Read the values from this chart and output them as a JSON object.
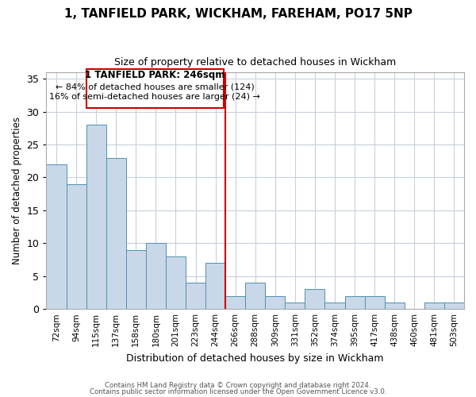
{
  "title": "1, TANFIELD PARK, WICKHAM, FAREHAM, PO17 5NP",
  "subtitle": "Size of property relative to detached houses in Wickham",
  "xlabel": "Distribution of detached houses by size in Wickham",
  "ylabel": "Number of detached properties",
  "bar_labels": [
    "72sqm",
    "94sqm",
    "115sqm",
    "137sqm",
    "158sqm",
    "180sqm",
    "201sqm",
    "223sqm",
    "244sqm",
    "266sqm",
    "288sqm",
    "309sqm",
    "331sqm",
    "352sqm",
    "374sqm",
    "395sqm",
    "417sqm",
    "438sqm",
    "460sqm",
    "481sqm",
    "503sqm"
  ],
  "bar_values": [
    22,
    19,
    28,
    23,
    9,
    10,
    8,
    4,
    7,
    2,
    4,
    2,
    1,
    3,
    1,
    2,
    2,
    1,
    0,
    1,
    1
  ],
  "bar_color": "#c8d8e8",
  "bar_edge_color": "#5090b0",
  "annotation_title": "1 TANFIELD PARK: 246sqm",
  "annotation_line1": "← 84% of detached houses are smaller (124)",
  "annotation_line2": "16% of semi-detached houses are larger (24) →",
  "reference_line_index": 8,
  "reference_line_color": "#cc0000",
  "ylim": [
    0,
    36
  ],
  "yticks": [
    0,
    5,
    10,
    15,
    20,
    25,
    30,
    35
  ],
  "background_color": "#ffffff",
  "grid_color": "#c8d0dc",
  "footnote1": "Contains HM Land Registry data © Crown copyright and database right 2024.",
  "footnote2": "Contains public sector information licensed under the Open Government Licence v3.0."
}
